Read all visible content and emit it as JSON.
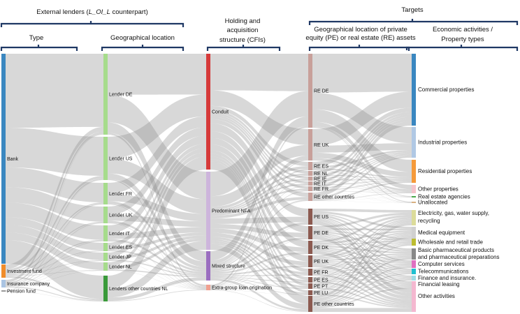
{
  "headers": {
    "external_lenders_pre": "External lenders (",
    "external_lenders_italic": "L_OI_L",
    "external_lenders_post": " counterpart)",
    "type": "Type",
    "lender_geo": "Geographical location",
    "holding": [
      "Holding and",
      "acquisition",
      "structure (CFIs)"
    ],
    "targets": "Targets",
    "asset_geo": [
      "Geographical location of private",
      "equity (PE) or real estate (RE) assets"
    ],
    "econ": [
      "Economic activities /",
      "Property types"
    ]
  },
  "columns": [
    {
      "id": "type",
      "nodes": [
        {
          "label": "Bank",
          "color": "#3a87c0"
        },
        {
          "label": "Investment fund",
          "color": "#f08c2a"
        },
        {
          "label": "Insurance company",
          "color": "#aac4e2"
        },
        {
          "label": "Pension fund",
          "color": "#999999"
        }
      ]
    },
    {
      "id": "lender_geo",
      "nodes": [
        {
          "label": "Lender DE",
          "color": "#a6dc8c"
        },
        {
          "label": "Lender US",
          "color": "#a6dc8c"
        },
        {
          "label": "Lender FR",
          "color": "#a6dc8c"
        },
        {
          "label": "Lender UK",
          "color": "#a6dc8c"
        },
        {
          "label": "Lender IT",
          "color": "#a6dc8c"
        },
        {
          "label": "Lender ES",
          "color": "#a6dc8c"
        },
        {
          "label": "Lender JP",
          "color": "#a6dc8c"
        },
        {
          "label": "Lender NL",
          "color": "#a6dc8c"
        },
        {
          "label": "Lenders other countries NL",
          "color": "#3a9a3a"
        }
      ]
    },
    {
      "id": "holding",
      "nodes": [
        {
          "label": "Conduit",
          "color": "#d63a3a"
        },
        {
          "label": "Predominant NFA",
          "color": "#cdb5dc"
        },
        {
          "label": "Mixed structure",
          "color": "#9b6ec0"
        },
        {
          "label": "Extra-group loan origination",
          "color": "#f0a090"
        }
      ]
    },
    {
      "id": "asset_geo",
      "nodes": [
        {
          "label": "RE DE",
          "color": "#c8a09a"
        },
        {
          "label": "RE UK",
          "color": "#c8a09a"
        },
        {
          "label": "RE ES",
          "color": "#c8a09a"
        },
        {
          "label": "RE NL",
          "color": "#c8a09a"
        },
        {
          "label": "RE IE",
          "color": "#c8a09a"
        },
        {
          "label": "RE IT",
          "color": "#c8a09a"
        },
        {
          "label": "RE FR",
          "color": "#c8a09a"
        },
        {
          "label": "RE other countries",
          "color": "#c8a09a"
        },
        {
          "label": "PE US",
          "color": "#8c5a50"
        },
        {
          "label": "PE DE",
          "color": "#8c5a50"
        },
        {
          "label": "PE DK",
          "color": "#8c5a50"
        },
        {
          "label": "PE UK",
          "color": "#8c5a50"
        },
        {
          "label": "PE FR",
          "color": "#8c5a50"
        },
        {
          "label": "PE ES",
          "color": "#8c5a50"
        },
        {
          "label": "PE PT",
          "color": "#8c5a50"
        },
        {
          "label": "PE LU",
          "color": "#8c5a50"
        },
        {
          "label": "PE other countries",
          "color": "#8c5a50"
        }
      ]
    },
    {
      "id": "econ",
      "nodes": [
        {
          "label": "Commercial properties",
          "color": "#3a87c0"
        },
        {
          "label": "Industrial properties",
          "color": "#b0c8e4"
        },
        {
          "label": "Residential properties",
          "color": "#f59a3a"
        },
        {
          "label": "Other properties",
          "color": "#f4c4cc"
        },
        {
          "label": "Real estate agencies",
          "color": "#4caa4c"
        },
        {
          "label": "Unallocated",
          "color": "#d8b080"
        },
        {
          "label": "Electricity, gas, water supply, recycling",
          "color": "#dcdc9a"
        },
        {
          "label": "Medical equipment",
          "color": "#d0d0d0"
        },
        {
          "label": "Wholesale and retail trade",
          "color": "#bcbc30"
        },
        {
          "label": "Basic pharmaceutical products and pharmaceutical preparations",
          "color": "#888888"
        },
        {
          "label": "Computer services",
          "color": "#e070c0"
        },
        {
          "label": "Telecommunications",
          "color": "#20c0d0"
        },
        {
          "label": "Finance and insurance.",
          "color": "#a0dce4"
        },
        {
          "label": "Financial leasing",
          "color": "#f4b8d0"
        },
        {
          "label": "Other activities",
          "color": "#f4b8d0"
        }
      ]
    }
  ]
}
